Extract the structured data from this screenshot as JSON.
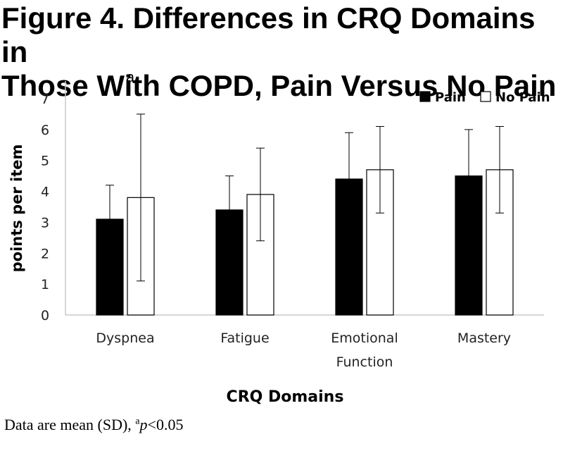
{
  "figure": {
    "title_line1": "Figure 4. Differences in CRQ Domains in",
    "title_line2": "Those With COPD, Pain Versus No Pain"
  },
  "caption": {
    "prefix": "Data are mean (SD), ",
    "sup": "a",
    "p": "p",
    "suffix": "<0.05"
  },
  "colors": {
    "pain": "#000000",
    "no_pain": "#ffffff",
    "outline": "#000000",
    "axis": "#c8c8c8"
  },
  "chart_data": {
    "type": "bar",
    "title": "",
    "xlabel": "CRQ Domains",
    "ylabel": "points per item",
    "ylim": [
      0,
      7
    ],
    "yticks": [
      0,
      1,
      2,
      3,
      4,
      5,
      6,
      7
    ],
    "categories": [
      [
        "Dyspnea"
      ],
      [
        "Fatigue"
      ],
      [
        "Emotional",
        "Function"
      ],
      [
        "Mastery"
      ]
    ],
    "series": [
      {
        "name": "Pain",
        "values": [
          3.1,
          3.4,
          4.4,
          4.5
        ],
        "errors": [
          1.1,
          1.1,
          1.5,
          1.5
        ]
      },
      {
        "name": "No Pain",
        "values": [
          3.8,
          3.9,
          4.7,
          4.7
        ],
        "errors": [
          2.7,
          1.5,
          1.4,
          1.4
        ]
      }
    ],
    "annotations": [
      {
        "text": "a",
        "category_index": 0
      }
    ],
    "legend": "top-right",
    "grid": false
  }
}
